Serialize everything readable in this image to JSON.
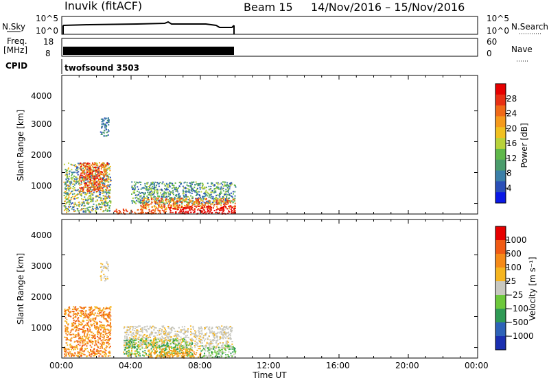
{
  "header": {
    "station": "Inuvik (fitACF)",
    "beam": "Beam 15",
    "dates": "14/Nov/2016 – 15/Nov/2016"
  },
  "top_panels": {
    "nsky_label": "N.Sky",
    "nsky_ticks": [
      "10^5",
      "10^0"
    ],
    "nsearch_label": "N.Search",
    "nsearch_ticks": [
      "10^5",
      "10^0"
    ],
    "freq_label_1": "Freq.",
    "freq_label_2": "[MHz]",
    "freq_ticks": [
      "18",
      "8"
    ],
    "nave_label": "Nave",
    "nave_ticks": [
      "60",
      "0"
    ],
    "cpid_label": "CPID",
    "cpid_value": "twofsound 3503"
  },
  "chart_data": [
    {
      "type": "heatmap",
      "title": "Power",
      "ylabel": "Slant Range [km]",
      "xlabel": "",
      "ylim": [
        180,
        4500
      ],
      "xlim_hours": [
        0,
        24
      ],
      "y_ticks": [
        "4000",
        "3000",
        "2000",
        "1000"
      ],
      "colorbar": {
        "label": "Power [dB]",
        "ticks": [
          "28",
          "24",
          "20",
          "16",
          "12",
          "8",
          "4"
        ],
        "colors": [
          "#0a18e6",
          "#2a4fb8",
          "#3b7fa8",
          "#4a9c6c",
          "#5fb84a",
          "#b8d23a",
          "#f0c020",
          "#f59a1c",
          "#f06a18",
          "#e83014",
          "#e60000"
        ]
      },
      "data_extent": {
        "start": "00:00",
        "end": "10:00"
      }
    },
    {
      "type": "heatmap",
      "title": "Velocity",
      "ylabel": "Slant Range [km]",
      "xlabel": "Time UT",
      "ylim": [
        180,
        4500
      ],
      "xlim_hours": [
        0,
        24
      ],
      "y_ticks": [
        "4000",
        "3000",
        "2000",
        "1000"
      ],
      "x_ticks": [
        "00:00",
        "04:00",
        "08:00",
        "12:00",
        "16:00",
        "20:00",
        "00:00"
      ],
      "colorbar": {
        "label": "Velocity [m s⁻¹]",
        "ticks": [
          "1000",
          "500",
          "100",
          "25",
          "−25",
          "−100",
          "−500",
          "−1000"
        ],
        "colors": [
          "#1a2fb0",
          "#2d62b8",
          "#2f9a55",
          "#6dc83c",
          "#c8c8c0",
          "#f5b520",
          "#f58a18",
          "#f05a14",
          "#e60000"
        ]
      },
      "data_extent": {
        "start": "00:00",
        "end": "10:00"
      }
    }
  ]
}
